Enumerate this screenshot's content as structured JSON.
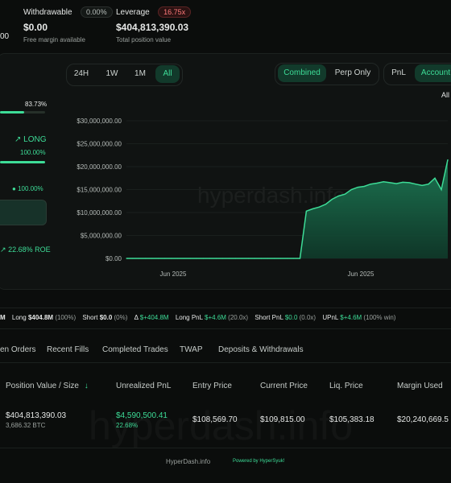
{
  "top": {
    "cut_value": "00",
    "withdrawable": {
      "label": "Withdrawable",
      "badge": "0.00%",
      "value": "$0.00",
      "sub": "Free margin available"
    },
    "leverage": {
      "label": "Leverage",
      "badge": "16.75x",
      "value": "$404,813,390.03",
      "sub": "Total position value"
    }
  },
  "left_panel": {
    "pct_top": "83.73%",
    "long_label": "LONG",
    "long_pct": "100.00%",
    "pct2": "100.00%",
    "roe": "22.68% ROE"
  },
  "timeframes": [
    "24H",
    "1W",
    "1M",
    "All"
  ],
  "active_timeframe": "All",
  "view_toggle": [
    "Combined",
    "Perp Only"
  ],
  "active_view": "Combined",
  "metric_toggle": [
    "PnL",
    "Account"
  ],
  "active_metric": "Account",
  "chart_range_label": "All",
  "watermark": "hyperdash.info",
  "chart_data": {
    "type": "area",
    "title": "",
    "y_ticks": [
      "$30,000,000.00",
      "$25,000,000.00",
      "$20,000,000.00",
      "$15,000,000.00",
      "$10,000,000.00",
      "$5,000,000.00",
      "$0.00"
    ],
    "x_ticks": [
      "Jun 2025",
      "Jun 2025"
    ],
    "ylim": [
      0,
      30000000
    ],
    "x": [
      0,
      1,
      2,
      3,
      4,
      5,
      6,
      7,
      8,
      9,
      10,
      11,
      12,
      13,
      14,
      15,
      16,
      17,
      18,
      19,
      20,
      21,
      22,
      23,
      24,
      25,
      26,
      27,
      28,
      29,
      30,
      31,
      32,
      33,
      34,
      35,
      36,
      37,
      38,
      39,
      40,
      41,
      42,
      43,
      44,
      45,
      46,
      47,
      48,
      49,
      50
    ],
    "values": [
      0,
      0,
      0,
      0,
      0,
      0,
      0,
      0,
      0,
      0,
      0,
      0,
      0,
      0,
      0,
      0,
      0,
      0,
      0,
      0,
      0,
      0,
      0,
      0,
      0,
      0,
      0,
      0,
      10300000,
      10800000,
      11200000,
      11800000,
      12900000,
      13600000,
      14000000,
      15000000,
      15500000,
      15700000,
      16200000,
      16400000,
      16700000,
      16500000,
      16300000,
      16600000,
      16500000,
      16200000,
      15900000,
      16200000,
      17500000,
      15000000,
      21500000
    ],
    "series_color": "#3ddc97"
  },
  "stats_bar": {
    "amount_suffix": "M",
    "long": "Long",
    "long_val": "$404.8M",
    "long_pct": "(100%)",
    "short": "Short",
    "short_val": "$0.0",
    "short_pct": "(0%)",
    "delta": "Δ",
    "delta_val": "$+404.8M",
    "long_pnl": "Long PnL",
    "long_pnl_val": "$+4.6M",
    "long_pnl_x": "(20.0x)",
    "short_pnl": "Short PnL",
    "short_pnl_val": "$0.0",
    "short_pnl_x": "(0.0x)",
    "upnl": "UPnL",
    "upnl_val": "$+4.6M",
    "upnl_win": "(100% win)"
  },
  "tabs": [
    "Open Orders",
    "Recent Fills",
    "Completed Trades",
    "TWAP",
    "Deposits & Withdrawals"
  ],
  "tab_first_cut": "en Orders",
  "table": {
    "headers": [
      "Position Value / Size",
      "Unrealized PnL",
      "Entry Price",
      "Current Price",
      "Liq. Price",
      "Margin Used"
    ],
    "sort_arrow": "↓",
    "row": {
      "position_value": "$404,813,390.03",
      "size": "3,686.32 BTC",
      "upnl": "$4,590,500.41",
      "upnl_pct": "22.68%",
      "entry": "$108,569.70",
      "current": "$109,815.00",
      "liq": "$105,383.18",
      "margin": "$20,240,669.5"
    }
  },
  "footer": {
    "site": "HyperDash.info",
    "powered": "Powered by HyperSyuk!"
  }
}
